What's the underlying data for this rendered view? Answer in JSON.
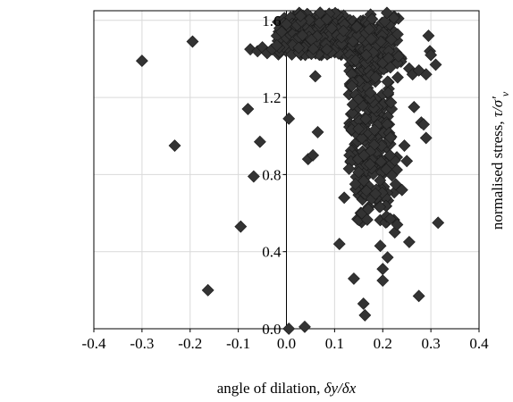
{
  "chart_data": {
    "type": "scatter",
    "title": "",
    "xlabel": {
      "prefix": "angle of dilation, ",
      "expr": "δy/δx"
    },
    "ylabel": {
      "prefix": "normalised stress, ",
      "expr": "τ/σ′",
      "sub": "v"
    },
    "xlim": [
      -0.4,
      0.4
    ],
    "ylim": [
      0.0,
      1.65
    ],
    "x_ticks": [
      -0.4,
      -0.3,
      -0.2,
      -0.1,
      0.0,
      0.1,
      0.2,
      0.3,
      0.4
    ],
    "x_tick_labels": [
      "-0.4",
      "-0.3",
      "-0.2",
      "-0.1",
      "0.0",
      "0.1",
      "0.2",
      "0.3",
      "0.4"
    ],
    "y_ticks": [
      0.0,
      0.4,
      0.8,
      1.2,
      1.6
    ],
    "y_tick_labels": [
      "0.0",
      "0.4",
      "0.8",
      "1.2",
      "1.6"
    ],
    "grid": true,
    "legend": "none",
    "marker": "diamond",
    "marker_color": "#333333",
    "grid_color": "#d9d9d9",
    "series": [
      {
        "points": [
          [
            -0.3,
            1.39
          ],
          [
            -0.195,
            1.49
          ],
          [
            -0.232,
            0.95
          ],
          [
            -0.163,
            0.2
          ],
          [
            -0.095,
            0.53
          ],
          [
            -0.08,
            1.14
          ],
          [
            -0.068,
            0.79
          ],
          [
            -0.055,
            0.97
          ],
          [
            -0.075,
            1.45
          ],
          [
            -0.06,
            1.44
          ],
          [
            -0.05,
            1.46
          ],
          [
            -0.04,
            1.43
          ],
          [
            -0.03,
            1.45
          ],
          [
            -0.02,
            1.47
          ],
          [
            -0.01,
            1.54
          ],
          [
            0.0,
            1.58
          ],
          [
            0.005,
            1.09
          ],
          [
            0.005,
            0.0
          ],
          [
            0.038,
            0.01
          ],
          [
            0.045,
            0.88
          ],
          [
            0.055,
            0.9
          ],
          [
            0.06,
            1.31
          ],
          [
            0.065,
            1.02
          ],
          [
            0.07,
            1.64
          ],
          [
            0.11,
            0.44
          ],
          [
            0.12,
            0.68
          ],
          [
            0.13,
            0.83
          ],
          [
            0.14,
            0.26
          ],
          [
            0.16,
            0.13
          ],
          [
            0.163,
            0.07
          ],
          [
            0.17,
            0.62
          ],
          [
            0.185,
            0.7
          ],
          [
            0.195,
            0.43
          ],
          [
            0.2,
            0.31
          ],
          [
            0.2,
            0.25
          ],
          [
            0.21,
            0.37
          ],
          [
            0.215,
            0.9
          ],
          [
            0.225,
            0.5
          ],
          [
            0.23,
            0.54
          ],
          [
            0.24,
            0.72
          ],
          [
            0.245,
            0.95
          ],
          [
            0.25,
            0.87
          ],
          [
            0.255,
            0.45
          ],
          [
            0.255,
            1.35
          ],
          [
            0.262,
            1.32
          ],
          [
            0.265,
            1.15
          ],
          [
            0.275,
            0.17
          ],
          [
            0.28,
            1.07
          ],
          [
            0.285,
            1.06
          ],
          [
            0.29,
            0.99
          ],
          [
            0.295,
            1.52
          ],
          [
            0.298,
            1.44
          ],
          [
            0.3,
            1.42
          ],
          [
            0.31,
            1.37
          ],
          [
            0.315,
            0.55
          ],
          [
            0.29,
            1.32
          ],
          [
            0.275,
            1.34
          ]
        ],
        "clusters": [
          {
            "type": "dense",
            "x_range": [
              -0.02,
              0.14
            ],
            "y_range": [
              1.42,
              1.64
            ],
            "n": 260
          },
          {
            "type": "dense",
            "x_range": [
              0.13,
              0.22
            ],
            "y_range": [
              0.82,
              1.6
            ],
            "n": 300
          },
          {
            "type": "dense",
            "x_range": [
              0.14,
              0.23
            ],
            "y_range": [
              0.55,
              0.9
            ],
            "n": 70
          },
          {
            "type": "dense",
            "x_range": [
              0.16,
              0.24
            ],
            "y_range": [
              1.3,
              1.64
            ],
            "n": 60
          }
        ]
      }
    ]
  }
}
